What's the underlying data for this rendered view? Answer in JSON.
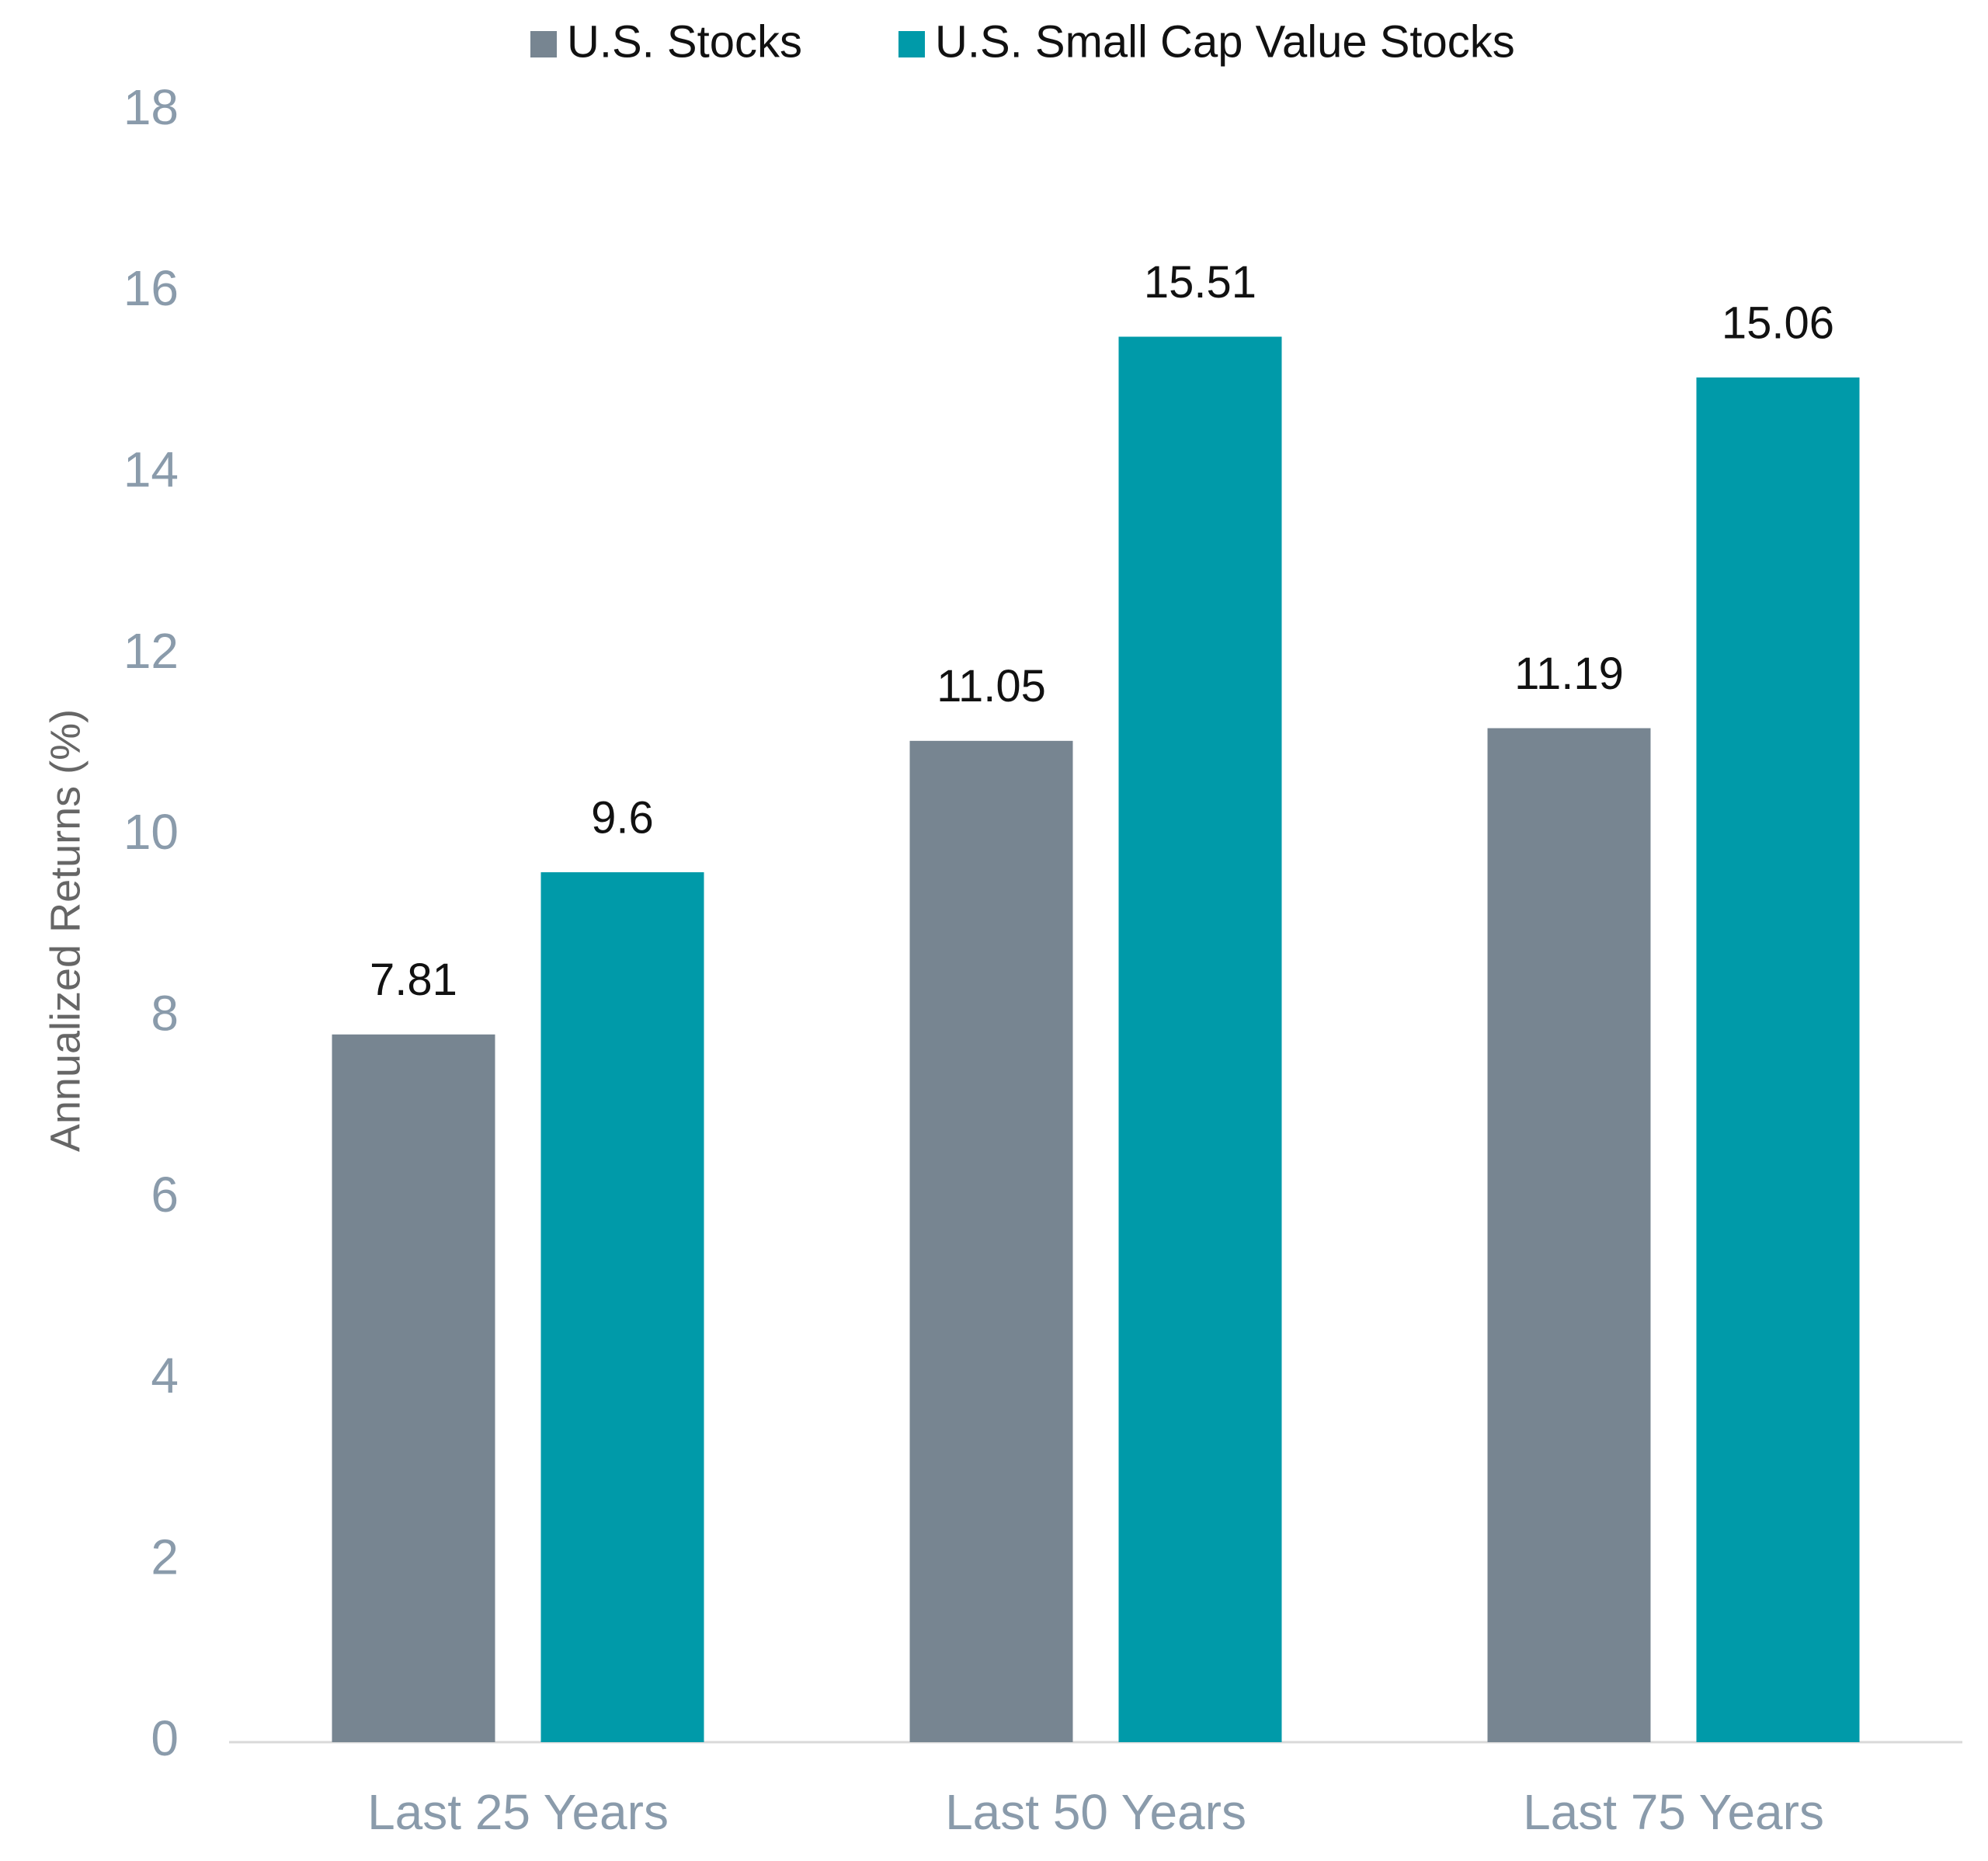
{
  "chart_data": {
    "type": "bar",
    "categories": [
      "Last 25 Years",
      "Last 50 Years",
      "Last 75 Years"
    ],
    "series": [
      {
        "name": "U.S. Stocks",
        "color": "#778591",
        "values": [
          7.81,
          11.05,
          11.19
        ]
      },
      {
        "name": "U.S. Small Cap Value Stocks",
        "color": "#009aa9",
        "values": [
          9.6,
          15.51,
          15.06
        ]
      }
    ],
    "ylabel": "Annualized Returns (%)",
    "ylim": [
      0,
      18
    ],
    "yticks": [
      0,
      2,
      4,
      6,
      8,
      10,
      12,
      14,
      16,
      18
    ],
    "grid": false,
    "legend": "top"
  }
}
